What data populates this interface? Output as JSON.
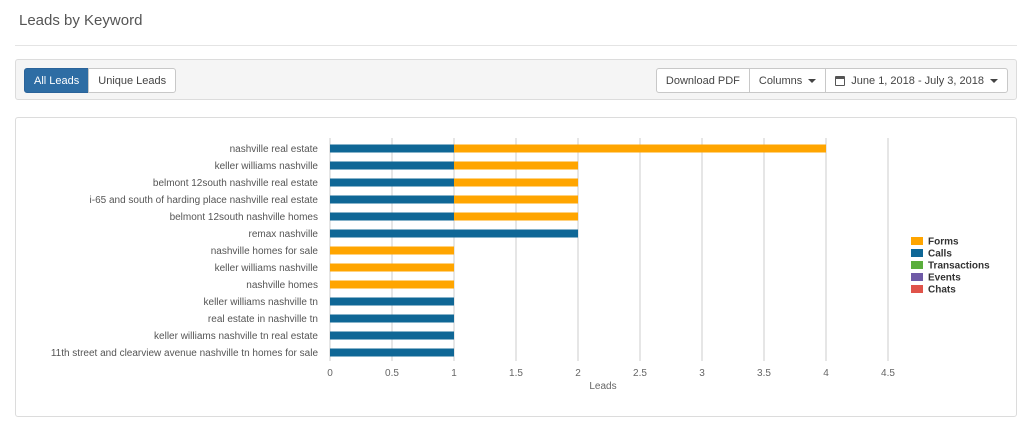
{
  "header": {
    "title": "Leads by Keyword"
  },
  "toolbar": {
    "tabs": [
      "All Leads",
      "Unique Leads"
    ],
    "download_label": "Download PDF",
    "columns_label": "Columns",
    "date_range_label": "June 1, 2018 - July 3, 2018"
  },
  "colors": {
    "Forms": "#ffa500",
    "Calls": "#0f6796",
    "Transactions": "#5aae3c",
    "Events": "#6f5aa6",
    "Chats": "#e0534a",
    "grid": "#cccccc",
    "active_tab": "#2e6da4"
  },
  "chart_data": {
    "type": "bar",
    "orientation": "horizontal",
    "stacked": true,
    "xlabel": "Leads",
    "ylabel": "",
    "xlim": [
      0,
      4.5
    ],
    "x_ticks": [
      0,
      0.5,
      1,
      1.5,
      2,
      2.5,
      3,
      3.5,
      4,
      4.5
    ],
    "grid": true,
    "legend_position": "right",
    "categories": [
      "nashville real estate",
      "keller williams nashville",
      "belmont 12south nashville real estate",
      "i-65 and south of harding place nashville real estate",
      "belmont 12south nashville homes",
      "remax nashville",
      "nashville homes for sale",
      "keller williams nashville",
      "nashville homes",
      "keller williams nashville tn",
      "real estate in nashville tn",
      "keller williams nashville tn real estate",
      "11th street and clearview avenue nashville tn homes for sale"
    ],
    "series": [
      {
        "name": "Calls",
        "values": [
          1,
          1,
          1,
          1,
          1,
          2,
          0,
          0,
          0,
          1,
          1,
          1,
          1
        ]
      },
      {
        "name": "Forms",
        "values": [
          3,
          1,
          1,
          1,
          1,
          0,
          1,
          1,
          1,
          0,
          0,
          0,
          0
        ]
      },
      {
        "name": "Transactions",
        "values": [
          0,
          0,
          0,
          0,
          0,
          0,
          0,
          0,
          0,
          0,
          0,
          0,
          0
        ]
      },
      {
        "name": "Events",
        "values": [
          0,
          0,
          0,
          0,
          0,
          0,
          0,
          0,
          0,
          0,
          0,
          0,
          0
        ]
      },
      {
        "name": "Chats",
        "values": [
          0,
          0,
          0,
          0,
          0,
          0,
          0,
          0,
          0,
          0,
          0,
          0,
          0
        ]
      }
    ],
    "legend": [
      "Forms",
      "Calls",
      "Transactions",
      "Events",
      "Chats"
    ]
  }
}
